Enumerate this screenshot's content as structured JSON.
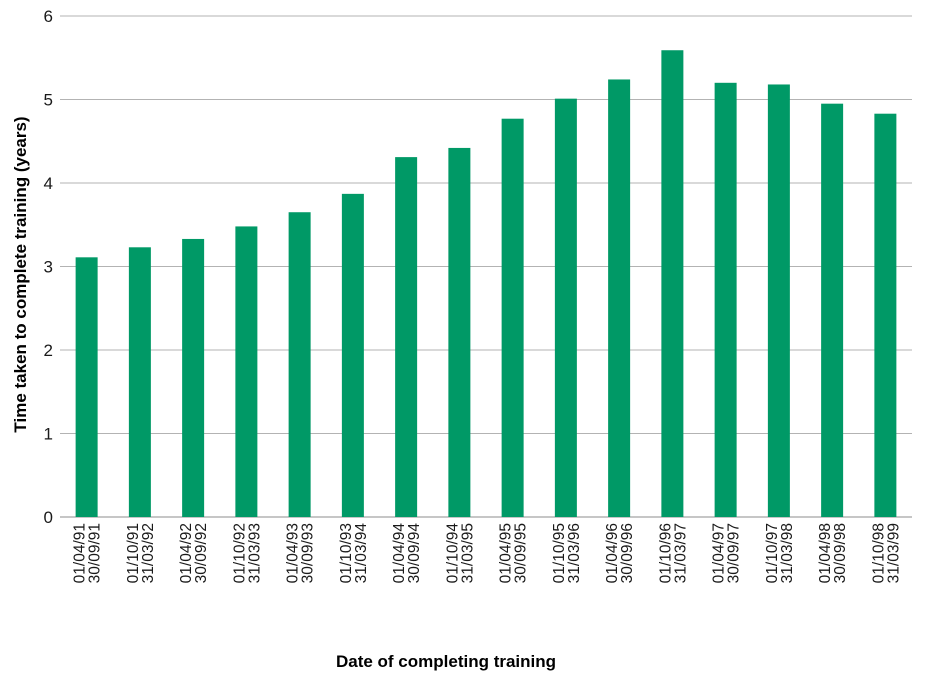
{
  "chart_data": {
    "type": "bar",
    "title": "",
    "xlabel": "Date of completing training",
    "ylabel": "Time taken to complete training (years)",
    "ylim": [
      0,
      6
    ],
    "yticks": [
      "0",
      "1",
      "2",
      "3",
      "4",
      "5",
      "6"
    ],
    "grid": "horizontal",
    "bar_color": "#009966",
    "categories": [
      [
        "01/04/91",
        "30/09/91"
      ],
      [
        "01/10/91",
        "31/03/92"
      ],
      [
        "01/04/92",
        "30/09/92"
      ],
      [
        "01/10/92",
        "31/03/93"
      ],
      [
        "01/04/93",
        "30/09/93"
      ],
      [
        "01/10/93",
        "31/03/94"
      ],
      [
        "01/04/94",
        "30/09/94"
      ],
      [
        "01/10/94",
        "31/03/95"
      ],
      [
        "01/04/95",
        "30/09/95"
      ],
      [
        "01/10/95",
        "31/03/96"
      ],
      [
        "01/04/96",
        "30/09/96"
      ],
      [
        "01/10/96",
        "31/03/97"
      ],
      [
        "01/04/97",
        "30/09/97"
      ],
      [
        "01/10/97",
        "31/03/98"
      ],
      [
        "01/04/98",
        "30/09/98"
      ],
      [
        "01/10/98",
        "31/03/99"
      ]
    ],
    "values": [
      3.11,
      3.23,
      3.33,
      3.48,
      3.65,
      3.87,
      4.31,
      4.42,
      4.77,
      5.01,
      5.24,
      5.59,
      5.2,
      5.18,
      4.95,
      4.83
    ]
  }
}
